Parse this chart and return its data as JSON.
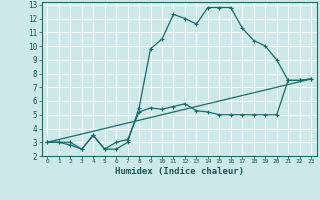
{
  "xlabel": "Humidex (Indice chaleur)",
  "bg_color": "#cce8e8",
  "grid_color": "#ffffff",
  "line_color": "#1a6b6b",
  "xlim": [
    -0.5,
    23.5
  ],
  "ylim": [
    2,
    13.2
  ],
  "xticks": [
    0,
    1,
    2,
    3,
    4,
    5,
    6,
    7,
    8,
    9,
    10,
    11,
    12,
    13,
    14,
    15,
    16,
    17,
    18,
    19,
    20,
    21,
    22,
    23
  ],
  "yticks": [
    2,
    3,
    4,
    5,
    6,
    7,
    8,
    9,
    10,
    11,
    12,
    13
  ],
  "series1_x": [
    0,
    1,
    2,
    3,
    4,
    5,
    6,
    7,
    8,
    9,
    10,
    11,
    12,
    13,
    14,
    15,
    16,
    17,
    18,
    19,
    20,
    21,
    22,
    23
  ],
  "series1_y": [
    3,
    3,
    3,
    2.5,
    3.5,
    2.5,
    2.5,
    3,
    5.5,
    9.8,
    10.5,
    12.3,
    12,
    11.6,
    12.8,
    12.8,
    12.8,
    11.3,
    10.4,
    10,
    9,
    7.5,
    7.5,
    7.6
  ],
  "series2_x": [
    0,
    1,
    2,
    3,
    4,
    5,
    6,
    7,
    8,
    9,
    10,
    11,
    12,
    13,
    14,
    15,
    16,
    17,
    18,
    19,
    20,
    21,
    22,
    23
  ],
  "series2_y": [
    3,
    3,
    2.8,
    2.5,
    3.5,
    2.5,
    3.0,
    3.2,
    5.2,
    5.5,
    5.4,
    5.6,
    5.8,
    5.3,
    5.2,
    5.0,
    5.0,
    5.0,
    5.0,
    5.0,
    5.0,
    7.5,
    7.5,
    7.6
  ],
  "series3_x": [
    0,
    23
  ],
  "series3_y": [
    3,
    7.6
  ]
}
